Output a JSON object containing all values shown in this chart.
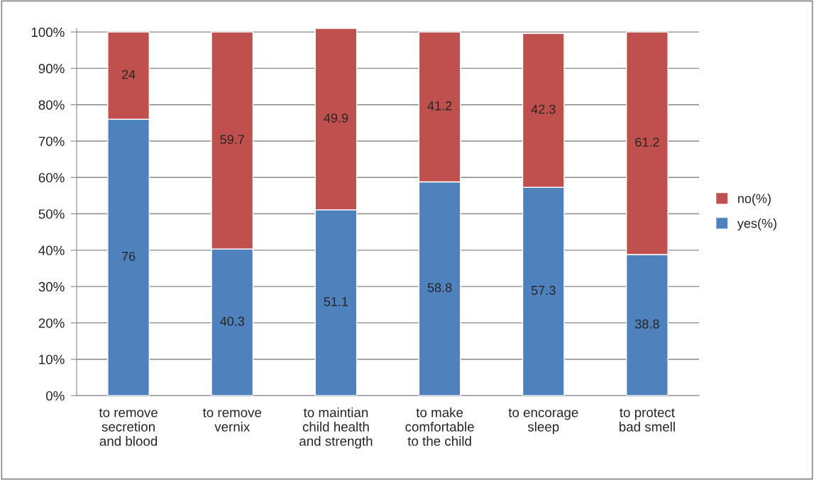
{
  "chart_data": {
    "type": "bar",
    "stacked": true,
    "categories": [
      "to remove\nsecretion\nand blood",
      "to remove\nvernix",
      "to maintian\nchild health\nand strength",
      "to make\ncomfortable\nto the child",
      "to encorage\nsleep",
      "to protect\nbad smell"
    ],
    "series": [
      {
        "name": "yes(%)",
        "color": "#4f81bd",
        "values": [
          76,
          40.3,
          51.1,
          58.8,
          57.3,
          38.8
        ],
        "value_labels": [
          "76",
          "40.3",
          "51.1",
          "58.8",
          "57.3",
          "38.8"
        ]
      },
      {
        "name": "no(%)",
        "color": "#c0504d",
        "values": [
          24,
          59.7,
          49.9,
          41.2,
          42.3,
          61.2
        ],
        "value_labels": [
          "24",
          "59.7",
          "49.9",
          "41.2",
          "42.3",
          "61.2"
        ]
      }
    ],
    "ylim": [
      0,
      101
    ],
    "yticks": [
      {
        "value": 0,
        "label": "0%"
      },
      {
        "value": 10,
        "label": "10%"
      },
      {
        "value": 20,
        "label": "20%"
      },
      {
        "value": 30,
        "label": "30%"
      },
      {
        "value": 40,
        "label": "40%"
      },
      {
        "value": 50,
        "label": "50%"
      },
      {
        "value": 60,
        "label": "60%"
      },
      {
        "value": 70,
        "label": "70%"
      },
      {
        "value": 80,
        "label": "80%"
      },
      {
        "value": 90,
        "label": "90%"
      },
      {
        "value": 100,
        "label": "100%"
      }
    ],
    "grid": "y",
    "legend": "right"
  }
}
